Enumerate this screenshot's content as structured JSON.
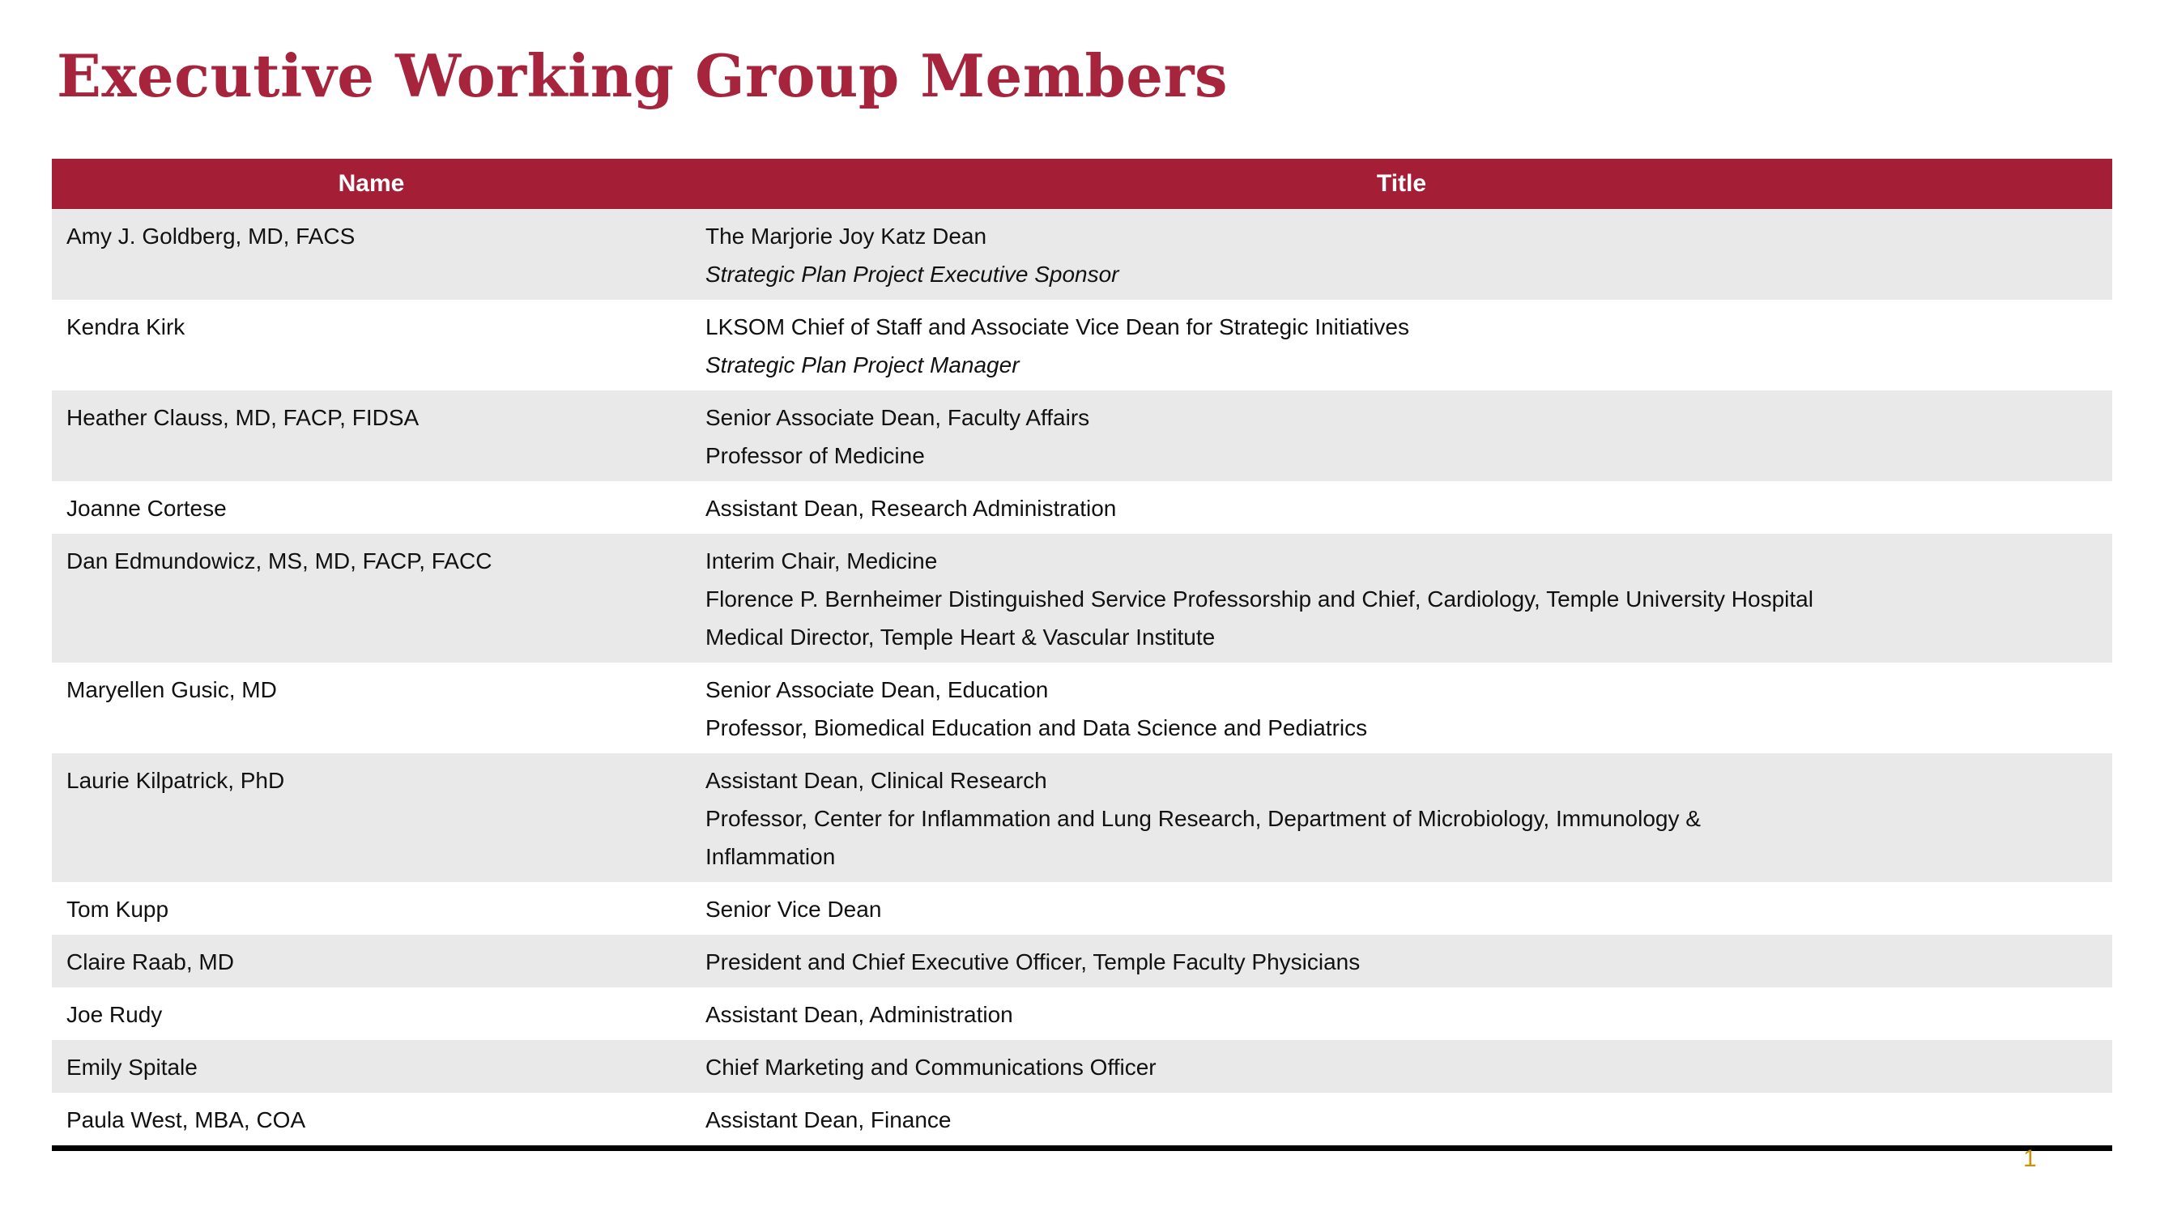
{
  "page": {
    "title": "Executive Working Group Members",
    "page_number": "1"
  },
  "colors": {
    "title_red": "#A6253D",
    "header_red": "#A41E36",
    "header_text": "#FFFFFF",
    "band_gray": "#E9E9E9",
    "band_white": "#FFFFFF",
    "bottom_rule_black": "#000000",
    "page_number_gold": "#C8930A"
  },
  "table": {
    "columns": [
      {
        "label": "Name"
      },
      {
        "label": "Title"
      }
    ],
    "rows": [
      {
        "name": "Amy J. Goldberg, MD, FACS",
        "title_lines": [
          {
            "text": "The Marjorie Joy Katz Dean",
            "italic": false
          },
          {
            "text": "Strategic Plan Project Executive Sponsor",
            "italic": true
          }
        ]
      },
      {
        "name": "Kendra Kirk",
        "title_lines": [
          {
            "text": "LKSOM Chief of Staff and Associate Vice Dean for Strategic Initiatives",
            "italic": false
          },
          {
            "text": "Strategic Plan Project Manager",
            "italic": true
          }
        ]
      },
      {
        "name": "Heather Clauss, MD, FACP, FIDSA",
        "title_lines": [
          {
            "text": "Senior Associate Dean, Faculty Affairs",
            "italic": false
          },
          {
            "text": "Professor of Medicine",
            "italic": false
          }
        ]
      },
      {
        "name": "Joanne Cortese",
        "title_lines": [
          {
            "text": "Assistant Dean, Research Administration",
            "italic": false
          }
        ]
      },
      {
        "name": "Dan Edmundowicz, MS, MD, FACP, FACC",
        "title_lines": [
          {
            "text": "Interim Chair, Medicine",
            "italic": false
          },
          {
            "text": "Florence P. Bernheimer Distinguished Service Professorship and Chief, Cardiology, Temple University Hospital",
            "italic": false
          },
          {
            "text": "Medical Director, Temple Heart & Vascular Institute",
            "italic": false
          }
        ]
      },
      {
        "name": "Maryellen Gusic, MD",
        "title_lines": [
          {
            "text": "Senior Associate Dean, Education",
            "italic": false
          },
          {
            "text": "Professor, Biomedical Education and Data Science and Pediatrics",
            "italic": false
          }
        ]
      },
      {
        "name": "Laurie Kilpatrick, PhD",
        "title_lines": [
          {
            "text": "Assistant Dean, Clinical Research",
            "italic": false
          },
          {
            "text": "Professor, Center for Inflammation and Lung Research, Department of Microbiology, Immunology &",
            "italic": false
          },
          {
            "text": "Inflammation",
            "italic": false
          }
        ]
      },
      {
        "name": "Tom Kupp",
        "title_lines": [
          {
            "text": "Senior Vice Dean",
            "italic": false
          }
        ]
      },
      {
        "name": "Claire Raab, MD",
        "title_lines": [
          {
            "text": "President and Chief Executive Officer, Temple Faculty Physicians",
            "italic": false
          }
        ]
      },
      {
        "name": "Joe Rudy",
        "title_lines": [
          {
            "text": "Assistant Dean, Administration",
            "italic": false
          }
        ]
      },
      {
        "name": "Emily Spitale",
        "title_lines": [
          {
            "text": "Chief Marketing and Communications Officer",
            "italic": false
          }
        ]
      },
      {
        "name": "Paula West, MBA, COA",
        "title_lines": [
          {
            "text": "Assistant Dean, Finance",
            "italic": false
          }
        ]
      }
    ]
  }
}
